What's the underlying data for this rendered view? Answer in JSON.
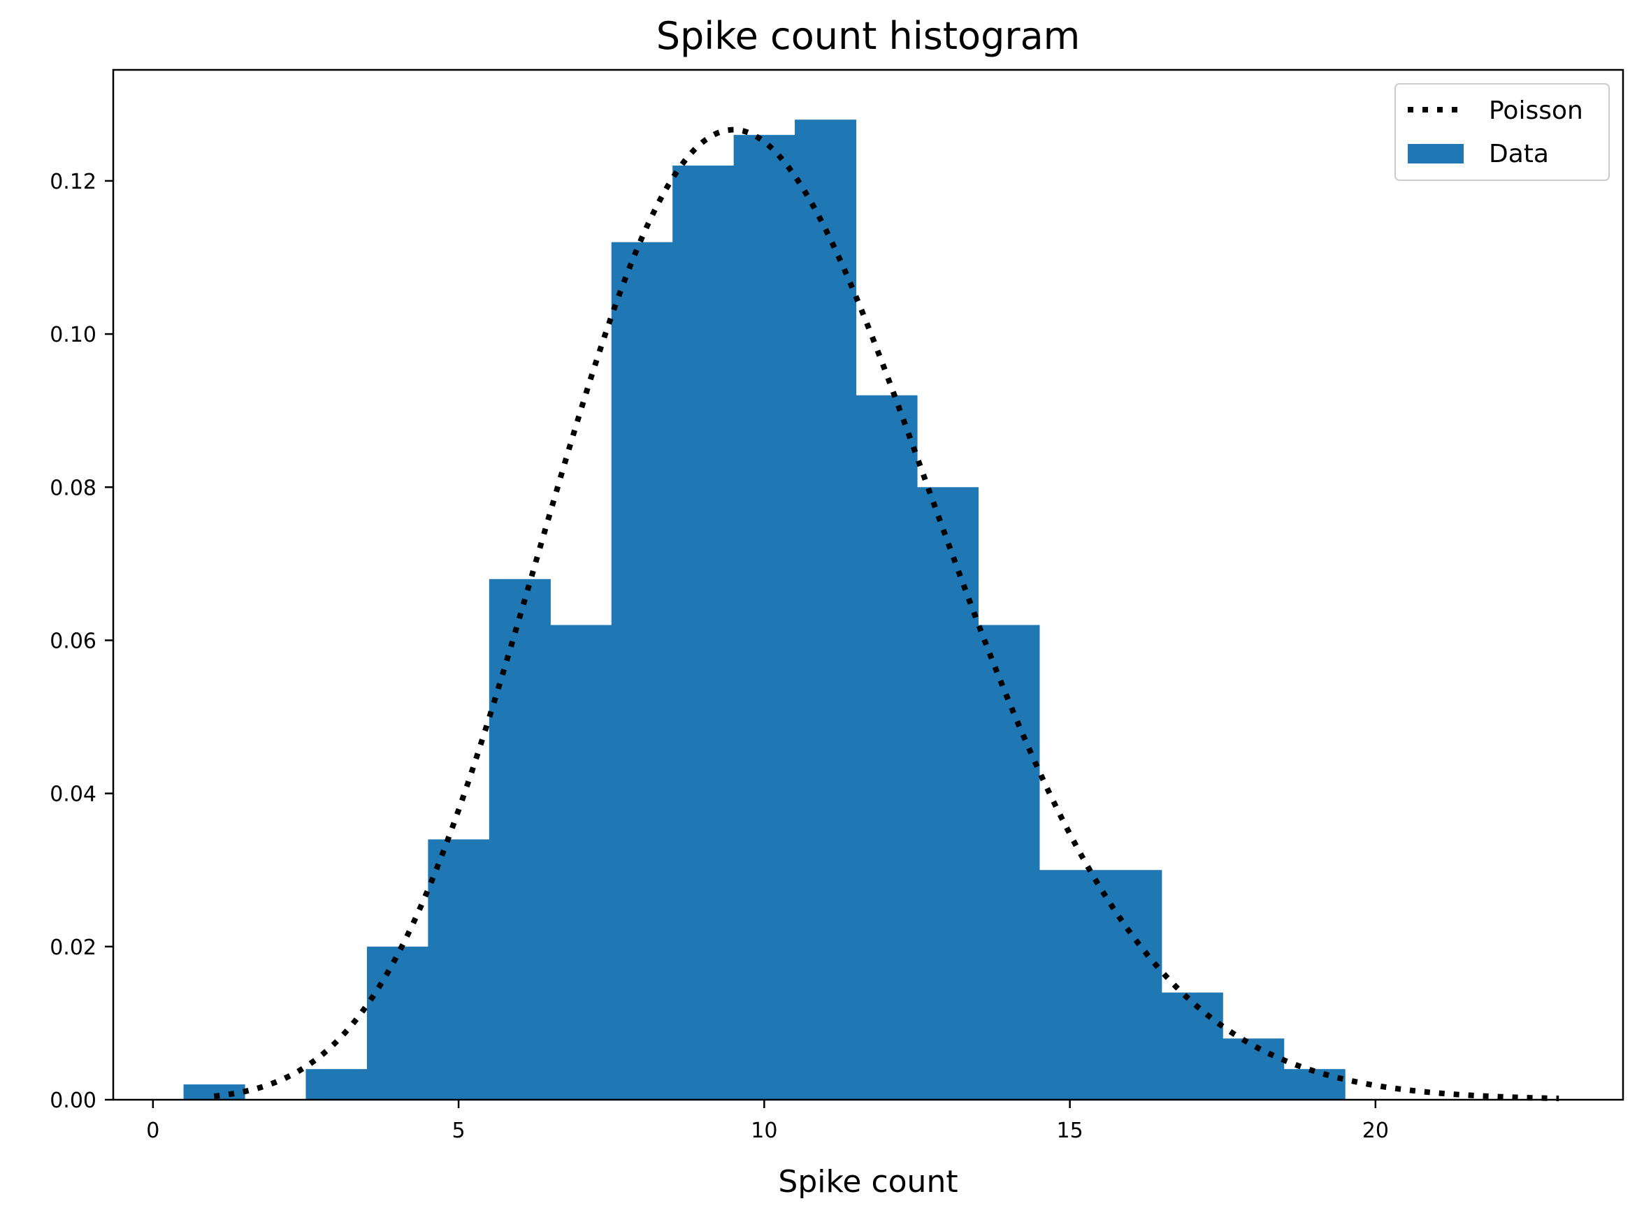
{
  "chart_data": {
    "type": "bar",
    "title": "Spike count histogram",
    "xlabel": "Spike count",
    "ylabel": "",
    "xlim": [
      -0.65,
      24.05
    ],
    "ylim": [
      0,
      0.1345
    ],
    "xticks": [
      0,
      5,
      10,
      15,
      20
    ],
    "xtick_labels": [
      "0",
      "5",
      "10",
      "15",
      "20"
    ],
    "yticks": [
      0,
      0.02,
      0.04,
      0.06,
      0.08,
      0.1,
      0.12
    ],
    "ytick_labels": [
      "0.00",
      "0.02",
      "0.04",
      "0.06",
      "0.08",
      "0.10",
      "0.12"
    ],
    "grid": false,
    "legend_position": "top-right",
    "bins": [
      {
        "x": 1,
        "value": 0.002
      },
      {
        "x": 2,
        "value": 0.0
      },
      {
        "x": 3,
        "value": 0.004
      },
      {
        "x": 4,
        "value": 0.02
      },
      {
        "x": 5,
        "value": 0.034
      },
      {
        "x": 6,
        "value": 0.068
      },
      {
        "x": 7,
        "value": 0.062
      },
      {
        "x": 8,
        "value": 0.112
      },
      {
        "x": 9,
        "value": 0.122
      },
      {
        "x": 10,
        "value": 0.126
      },
      {
        "x": 11,
        "value": 0.128
      },
      {
        "x": 12,
        "value": 0.092
      },
      {
        "x": 13,
        "value": 0.08
      },
      {
        "x": 14,
        "value": 0.062
      },
      {
        "x": 15,
        "value": 0.03
      },
      {
        "x": 16,
        "value": 0.03
      },
      {
        "x": 17,
        "value": 0.014
      },
      {
        "x": 18,
        "value": 0.008
      },
      {
        "x": 19,
        "value": 0.004
      }
    ],
    "bin_width": 1,
    "series": [
      {
        "name": "Poisson",
        "style": "dotted",
        "color": "#000000",
        "lambda": 10,
        "x_range": [
          1,
          23
        ]
      },
      {
        "name": "Data",
        "style": "bar",
        "color": "#1f77b4"
      }
    ]
  }
}
